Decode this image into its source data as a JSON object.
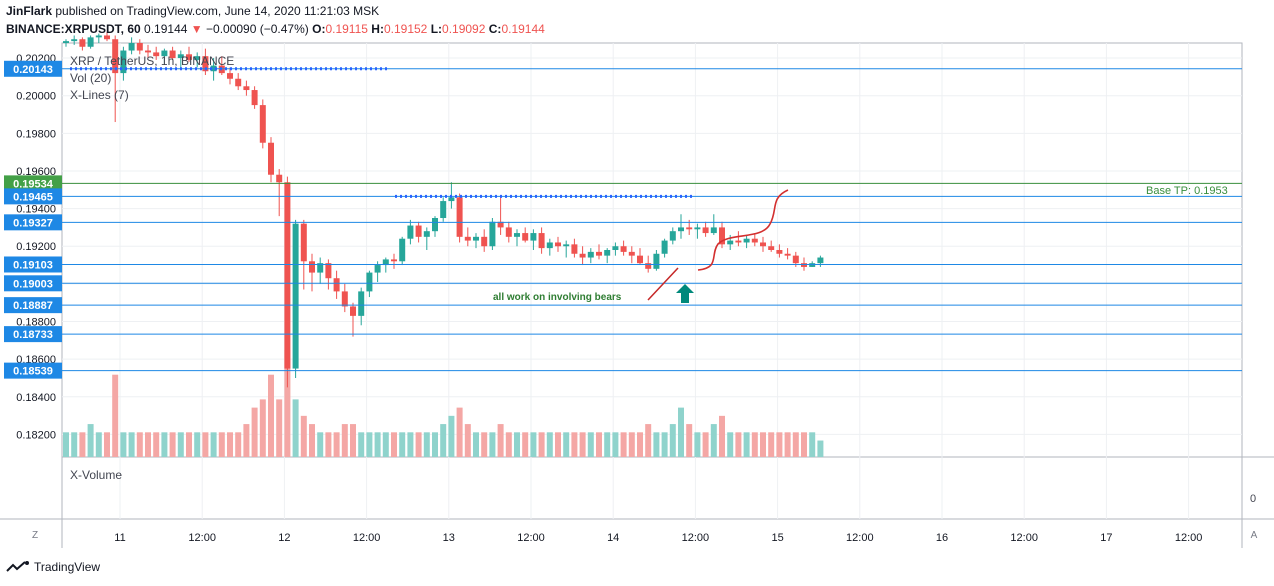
{
  "header": {
    "author": "JinFlark",
    "published": "published on TradingView.com, June 14, 2020 11:21:03 MSK",
    "symbol": "BINANCE:XRPUSDT, 60",
    "last": "0.19144",
    "change_arrow": "▼",
    "change": "−0.00090 (−0.47%)",
    "o_label": "O:",
    "o_val": "0.19115",
    "h_label": "H:",
    "h_val": "0.19152",
    "l_label": "L:",
    "l_val": "0.19092",
    "c_label": "C:",
    "c_val": "0.19144"
  },
  "legend": {
    "pair": "XRP / TetherUS, 1h, BINANCE",
    "vol": "Vol (20)",
    "xlines": "X-Lines (7)",
    "xvolume": "X-Volume",
    "xvolume_value": "0"
  },
  "annotations": {
    "note": "all work on involving bears",
    "base_tp": "Base TP: 0.1953"
  },
  "controls": {
    "zoom": "Z",
    "auto": "A"
  },
  "footer": {
    "brand": "TradingView"
  },
  "colors": {
    "up": "#26a69a",
    "down": "#ef5350",
    "line": "#2962ff",
    "marker_blue": "#1e88e5",
    "marker_green": "#43a047"
  },
  "chart_data": {
    "type": "candlestick",
    "price_ticks": [
      "0.20200",
      "0.20000",
      "0.19800",
      "0.19600",
      "0.19400",
      "0.19200",
      "0.19000",
      "0.18800",
      "0.18600",
      "0.18400",
      "0.18200"
    ],
    "price_ticks_values": [
      0.202,
      0.2,
      0.198,
      0.196,
      0.194,
      0.192,
      0.19,
      0.188,
      0.186,
      0.184,
      0.182
    ],
    "ylim": [
      0.1808,
      0.2028
    ],
    "x_ticks": [
      "11",
      "12:00",
      "12",
      "12:00",
      "13",
      "12:00",
      "14",
      "12:00",
      "15",
      "12:00",
      "16",
      "12:00",
      "17",
      "12:00"
    ],
    "horizontal_levels": [
      {
        "value": 0.20143,
        "label": "0.20143",
        "marker": "blue"
      },
      {
        "value": 0.19534,
        "label": "0.19534",
        "marker": "green"
      },
      {
        "value": 0.19465,
        "label": "0.19465",
        "marker": "blue"
      },
      {
        "value": 0.19327,
        "label": "0.19327",
        "marker": "blue"
      },
      {
        "value": 0.19103,
        "label": "0.19103",
        "marker": "blue"
      },
      {
        "value": 0.19003,
        "label": "0.19003",
        "marker": "blue"
      },
      {
        "value": 0.18887,
        "label": "0.18887",
        "marker": "blue"
      },
      {
        "value": 0.18733,
        "label": "0.18733",
        "marker": "blue"
      },
      {
        "value": 0.18539,
        "label": "0.18539",
        "marker": "blue"
      }
    ],
    "candles": [
      [
        0.2028,
        0.203,
        0.2026,
        0.2029,
        0.3
      ],
      [
        0.2029,
        0.2032,
        0.2027,
        0.203,
        0.3
      ],
      [
        0.203,
        0.2031,
        0.2024,
        0.2026,
        0.3
      ],
      [
        0.2026,
        0.2032,
        0.2025,
        0.2031,
        0.4
      ],
      [
        0.2031,
        0.2033,
        0.2028,
        0.2032,
        0.3
      ],
      [
        0.2032,
        0.2034,
        0.2029,
        0.203,
        0.3
      ],
      [
        0.203,
        0.2032,
        0.1986,
        0.2012,
        1.0
      ],
      [
        0.2012,
        0.2026,
        0.2008,
        0.2024,
        0.3
      ],
      [
        0.2024,
        0.2031,
        0.2022,
        0.2028,
        0.3
      ],
      [
        0.2028,
        0.203,
        0.2022,
        0.2024,
        0.3
      ],
      [
        0.2024,
        0.2027,
        0.202,
        0.2023,
        0.3
      ],
      [
        0.2023,
        0.2026,
        0.2019,
        0.2021,
        0.3
      ],
      [
        0.2021,
        0.2025,
        0.2017,
        0.2024,
        0.3
      ],
      [
        0.2024,
        0.2026,
        0.2019,
        0.202,
        0.3
      ],
      [
        0.202,
        0.2024,
        0.2014,
        0.2022,
        0.3
      ],
      [
        0.2022,
        0.2026,
        0.2018,
        0.2019,
        0.3
      ],
      [
        0.2019,
        0.2023,
        0.2015,
        0.2021,
        0.3
      ],
      [
        0.2021,
        0.2025,
        0.2011,
        0.2013,
        0.3
      ],
      [
        0.2013,
        0.202,
        0.2008,
        0.2016,
        0.3
      ],
      [
        0.2016,
        0.2021,
        0.2011,
        0.2012,
        0.3
      ],
      [
        0.2012,
        0.2015,
        0.2006,
        0.2009,
        0.3
      ],
      [
        0.2009,
        0.2012,
        0.2003,
        0.2005,
        0.3
      ],
      [
        0.2005,
        0.2008,
        0.2,
        0.2003,
        0.4
      ],
      [
        0.2003,
        0.2005,
        0.1993,
        0.1995,
        0.6
      ],
      [
        0.1995,
        0.1998,
        0.1972,
        0.1975,
        0.7
      ],
      [
        0.1975,
        0.1978,
        0.1954,
        0.1958,
        1.0
      ],
      [
        0.1958,
        0.1961,
        0.1936,
        0.1954,
        0.7
      ],
      [
        0.1954,
        0.1957,
        0.1845,
        0.1855,
        1.3
      ],
      [
        0.1855,
        0.1934,
        0.185,
        0.1932,
        0.7
      ],
      [
        0.1932,
        0.1934,
        0.1897,
        0.1912,
        0.5
      ],
      [
        0.1912,
        0.1916,
        0.1896,
        0.1906,
        0.4
      ],
      [
        0.1906,
        0.1914,
        0.19,
        0.1911,
        0.3
      ],
      [
        0.1911,
        0.1913,
        0.1897,
        0.1903,
        0.3
      ],
      [
        0.1903,
        0.1907,
        0.1892,
        0.1896,
        0.3
      ],
      [
        0.1896,
        0.19,
        0.1885,
        0.1888,
        0.4
      ],
      [
        0.1888,
        0.189,
        0.1872,
        0.1883,
        0.4
      ],
      [
        0.1883,
        0.1898,
        0.1878,
        0.1896,
        0.3
      ],
      [
        0.1896,
        0.1907,
        0.1893,
        0.1906,
        0.3
      ],
      [
        0.1906,
        0.1912,
        0.1901,
        0.191,
        0.3
      ],
      [
        0.191,
        0.1914,
        0.1906,
        0.1913,
        0.3
      ],
      [
        0.1913,
        0.1916,
        0.1908,
        0.1912,
        0.3
      ],
      [
        0.1912,
        0.1925,
        0.191,
        0.1924,
        0.3
      ],
      [
        0.1924,
        0.1934,
        0.1921,
        0.1931,
        0.3
      ],
      [
        0.1931,
        0.1933,
        0.1922,
        0.1925,
        0.3
      ],
      [
        0.1925,
        0.193,
        0.1918,
        0.1928,
        0.3
      ],
      [
        0.1928,
        0.1936,
        0.1925,
        0.1935,
        0.3
      ],
      [
        0.1935,
        0.1946,
        0.1933,
        0.1944,
        0.4
      ],
      [
        0.1944,
        0.1954,
        0.194,
        0.1946,
        0.5
      ],
      [
        0.1946,
        0.1948,
        0.1922,
        0.1925,
        0.6
      ],
      [
        0.1925,
        0.193,
        0.192,
        0.1923,
        0.4
      ],
      [
        0.1923,
        0.1927,
        0.1919,
        0.1925,
        0.3
      ],
      [
        0.1925,
        0.1929,
        0.1917,
        0.192,
        0.3
      ],
      [
        0.192,
        0.1935,
        0.1918,
        0.1933,
        0.3
      ],
      [
        0.1933,
        0.1946,
        0.1926,
        0.193,
        0.4
      ],
      [
        0.193,
        0.1933,
        0.1922,
        0.1925,
        0.3
      ],
      [
        0.1925,
        0.1929,
        0.192,
        0.1927,
        0.3
      ],
      [
        0.1927,
        0.193,
        0.1922,
        0.1923,
        0.3
      ],
      [
        0.1923,
        0.1929,
        0.1918,
        0.1927,
        0.3
      ],
      [
        0.1927,
        0.193,
        0.1916,
        0.1919,
        0.3
      ],
      [
        0.1919,
        0.1924,
        0.1915,
        0.1922,
        0.3
      ],
      [
        0.1922,
        0.1925,
        0.1917,
        0.192,
        0.3
      ],
      [
        0.192,
        0.1923,
        0.1914,
        0.1921,
        0.3
      ],
      [
        0.1921,
        0.1924,
        0.1914,
        0.1916,
        0.3
      ],
      [
        0.1916,
        0.192,
        0.191,
        0.1914,
        0.3
      ],
      [
        0.1914,
        0.1919,
        0.1911,
        0.1917,
        0.3
      ],
      [
        0.1917,
        0.1921,
        0.1913,
        0.1915,
        0.3
      ],
      [
        0.1915,
        0.1919,
        0.1911,
        0.1918,
        0.3
      ],
      [
        0.1918,
        0.1922,
        0.1915,
        0.192,
        0.3
      ],
      [
        0.192,
        0.1923,
        0.1915,
        0.1917,
        0.3
      ],
      [
        0.1917,
        0.192,
        0.1911,
        0.1915,
        0.3
      ],
      [
        0.1915,
        0.1919,
        0.191,
        0.1911,
        0.3
      ],
      [
        0.1911,
        0.1915,
        0.1906,
        0.1908,
        0.4
      ],
      [
        0.1908,
        0.1918,
        0.1907,
        0.1916,
        0.3
      ],
      [
        0.1916,
        0.1924,
        0.1914,
        0.1923,
        0.3
      ],
      [
        0.1923,
        0.193,
        0.1921,
        0.1928,
        0.4
      ],
      [
        0.1928,
        0.1937,
        0.1924,
        0.193,
        0.6
      ],
      [
        0.193,
        0.1934,
        0.1926,
        0.1929,
        0.4
      ],
      [
        0.1929,
        0.1932,
        0.1924,
        0.193,
        0.3
      ],
      [
        0.193,
        0.1933,
        0.1925,
        0.1927,
        0.3
      ],
      [
        0.1927,
        0.1937,
        0.1926,
        0.193,
        0.4
      ],
      [
        0.193,
        0.1933,
        0.1919,
        0.1921,
        0.5
      ],
      [
        0.1921,
        0.1926,
        0.1918,
        0.1923,
        0.3
      ],
      [
        0.1923,
        0.1928,
        0.192,
        0.1922,
        0.3
      ],
      [
        0.1922,
        0.1926,
        0.1919,
        0.1924,
        0.3
      ],
      [
        0.1924,
        0.1927,
        0.192,
        0.1922,
        0.3
      ],
      [
        0.1922,
        0.1925,
        0.1917,
        0.192,
        0.3
      ],
      [
        0.192,
        0.1923,
        0.1917,
        0.1918,
        0.3
      ],
      [
        0.1918,
        0.1921,
        0.1914,
        0.1916,
        0.3
      ],
      [
        0.1916,
        0.1919,
        0.1913,
        0.1915,
        0.3
      ],
      [
        0.1915,
        0.1917,
        0.1909,
        0.1911,
        0.3
      ],
      [
        0.1911,
        0.1914,
        0.1907,
        0.1909,
        0.3
      ],
      [
        0.1909,
        0.1912,
        0.1909,
        0.1911,
        0.3
      ],
      [
        0.1911,
        0.1915,
        0.1909,
        0.1914,
        0.2
      ]
    ]
  }
}
